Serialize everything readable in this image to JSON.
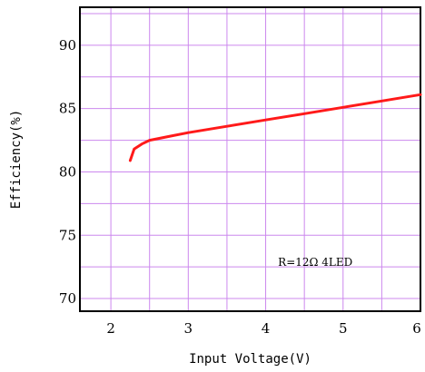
{
  "chart_data": {
    "type": "line",
    "title": "",
    "xlabel": "Input Voltage(V)",
    "ylabel": "Efficiency(%)",
    "xlim": [
      1.6,
      6.0
    ],
    "ylim": [
      69,
      93
    ],
    "xticks": [
      2,
      3,
      4,
      5,
      6
    ],
    "yticks": [
      70,
      75,
      80,
      85,
      90
    ],
    "grid": true,
    "annotation": "R=12Ω  4LED",
    "colors": {
      "grid": "#cc88ee",
      "line": "#ff1a1a",
      "frame": "#000000"
    },
    "series": [
      {
        "x": [
          2.25,
          2.3,
          2.4,
          2.5,
          2.75,
          3.0,
          3.5,
          4.0,
          4.5,
          5.0,
          5.5,
          6.0
        ],
        "y": [
          80.9,
          81.8,
          82.2,
          82.5,
          82.8,
          83.1,
          83.6,
          84.1,
          84.6,
          85.1,
          85.6,
          86.1
        ]
      }
    ]
  }
}
